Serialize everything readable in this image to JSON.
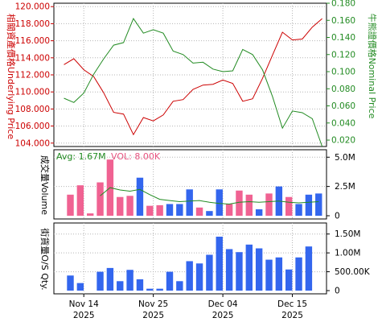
{
  "colors": {
    "underlying": "#cc0000",
    "nominal": "#228b22",
    "volume_up": "#f06292",
    "volume_down": "#3366ee",
    "avg_line": "#228b22",
    "sqty": "#3366ee",
    "grid": "#b5b5b5",
    "frame": "#000000",
    "vol_label": "#e75480",
    "avg_label": "#228b22",
    "sqty_label": "#000000"
  },
  "labels": {
    "underlying_axis_cn": "相關資產價格",
    "underlying_axis_en": "Underlying Price",
    "nominal_axis_cn": "牛熊證價格",
    "nominal_axis_en": "Nominal Price",
    "volume_axis_cn": "成交量",
    "volume_axis_en": "Volume",
    "sqty_axis_cn": "街貨量",
    "sqty_axis_en": "O/S Qty.",
    "avg_text": "Avg: 1.67M",
    "vol_text": "VOL: 8.00K"
  },
  "chart_data": [
    {
      "type": "line",
      "x_labels": [
        {
          "day": "Nov 14",
          "year": "2025",
          "index": 2
        },
        {
          "day": "Nov 25",
          "year": "2025",
          "index": 9
        },
        {
          "day": "Dec 04",
          "year": "2025",
          "index": 16
        },
        {
          "day": "Dec 15",
          "year": "2025",
          "index": 23
        }
      ],
      "grid": true,
      "left_axis": {
        "ylim": [
          103.6,
          120.4
        ],
        "ticks": [
          "104.000",
          "106.000",
          "108.000",
          "110.000",
          "112.000",
          "114.000",
          "116.000",
          "118.000",
          "120.000"
        ],
        "tick_values": [
          104,
          106,
          108,
          110,
          112,
          114,
          116,
          118,
          120
        ]
      },
      "right_axis": {
        "ylim": [
          0.0125,
          0.18
        ],
        "ticks": [
          "0.020",
          "0.040",
          "0.060",
          "0.080",
          "0.100",
          "0.120",
          "0.140",
          "0.160",
          "0.180"
        ],
        "tick_values": [
          0.02,
          0.04,
          0.06,
          0.08,
          0.1,
          0.12,
          0.14,
          0.16,
          0.18
        ]
      },
      "series": [
        {
          "key": "underlying",
          "axis": "left",
          "values": [
            113.2,
            113.9,
            112.6,
            111.8,
            109.9,
            107.6,
            107.4,
            105.0,
            107.0,
            106.6,
            107.3,
            108.9,
            109.1,
            110.3,
            110.8,
            110.9,
            111.4,
            111.0,
            108.9,
            109.2,
            111.6,
            114.3,
            117.0,
            116.1,
            116.2,
            117.6,
            118.6
          ],
          "continue_to_x": 26.6
        },
        {
          "key": "nominal",
          "axis": "left",
          "values_right": [
            0.069,
            0.064,
            0.075,
            0.097,
            0.115,
            0.131,
            0.134,
            0.162,
            0.145,
            0.149,
            0.145,
            0.124,
            0.12,
            0.11,
            0.111,
            0.103,
            0.1,
            0.101,
            0.126,
            0.12,
            0.102,
            0.071,
            0.034,
            0.054,
            0.052,
            0.045,
            0.012
          ]
        }
      ]
    },
    {
      "type": "bar",
      "ylim": [
        0,
        5500000
      ],
      "ticks": [
        "0",
        "2.5M",
        "5.0M"
      ],
      "tick_values": [
        0,
        2500000,
        5000000
      ],
      "avg": 1670000,
      "volume": [
        1800000,
        2600000,
        200000,
        2850000,
        4800000,
        1600000,
        1700000,
        3250000,
        850000,
        900000,
        1000000,
        1000000,
        2250000,
        700000,
        400000,
        2250000,
        1000000,
        2150000,
        1800000,
        550000,
        1900000,
        2500000,
        1600000,
        1000000,
        1800000,
        1900000
      ],
      "direction": [
        "up",
        "up",
        "up",
        "up",
        "up",
        "up",
        "up",
        "down",
        "up",
        "up",
        "down",
        "down",
        "down",
        "up",
        "down",
        "down",
        "up",
        "up",
        "up",
        "down",
        "up",
        "down",
        "up",
        "down",
        "down",
        "down"
      ],
      "avg_line": [
        null,
        null,
        null,
        1700000,
        2400000,
        2200000,
        2100000,
        2250000,
        1800000,
        1400000,
        1300000,
        1200000,
        1250000,
        1300000,
        1150000,
        1050000,
        1000000,
        1150000,
        1200000,
        1150000,
        1200000,
        1250000,
        1150000,
        1100000,
        1150000,
        1200000
      ]
    },
    {
      "type": "bar",
      "ylim": [
        0,
        1750000
      ],
      "ticks": [
        "0",
        "500.00K",
        "1.00M",
        "1.50M"
      ],
      "tick_values": [
        0,
        500000,
        1000000,
        1500000
      ],
      "values": [
        400000,
        200000,
        0,
        500000,
        600000,
        250000,
        550000,
        300000,
        50000,
        50000,
        500000,
        250000,
        780000,
        720000,
        950000,
        1430000,
        1100000,
        1020000,
        1220000,
        1120000,
        820000,
        880000,
        560000,
        880000,
        1170000
      ]
    }
  ]
}
